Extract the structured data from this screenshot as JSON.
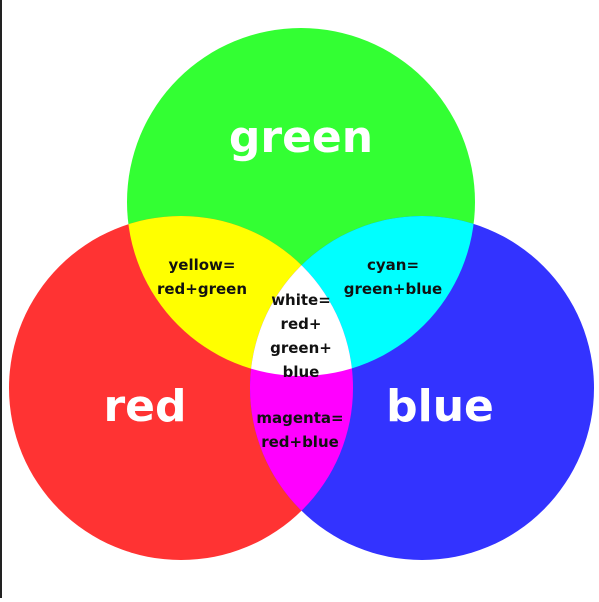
{
  "colors": {
    "green": "#33ff33",
    "red": "#ff3333",
    "blue": "#3333ff",
    "yellow": "#ffff00",
    "cyan": "#00ffff",
    "magenta": "#ff00ff",
    "white": "#ffffff",
    "big_text": "#ffffff",
    "small_text": "#111111"
  },
  "primary": {
    "green": "green",
    "red": "red",
    "blue": "blue"
  },
  "mixes": {
    "yellow": [
      "yellow=",
      "red+green"
    ],
    "cyan": [
      "cyan=",
      "green+blue"
    ],
    "magenta": [
      "magenta=",
      "red+blue"
    ],
    "white": [
      "white=",
      "red+",
      "green+",
      "blue"
    ]
  }
}
